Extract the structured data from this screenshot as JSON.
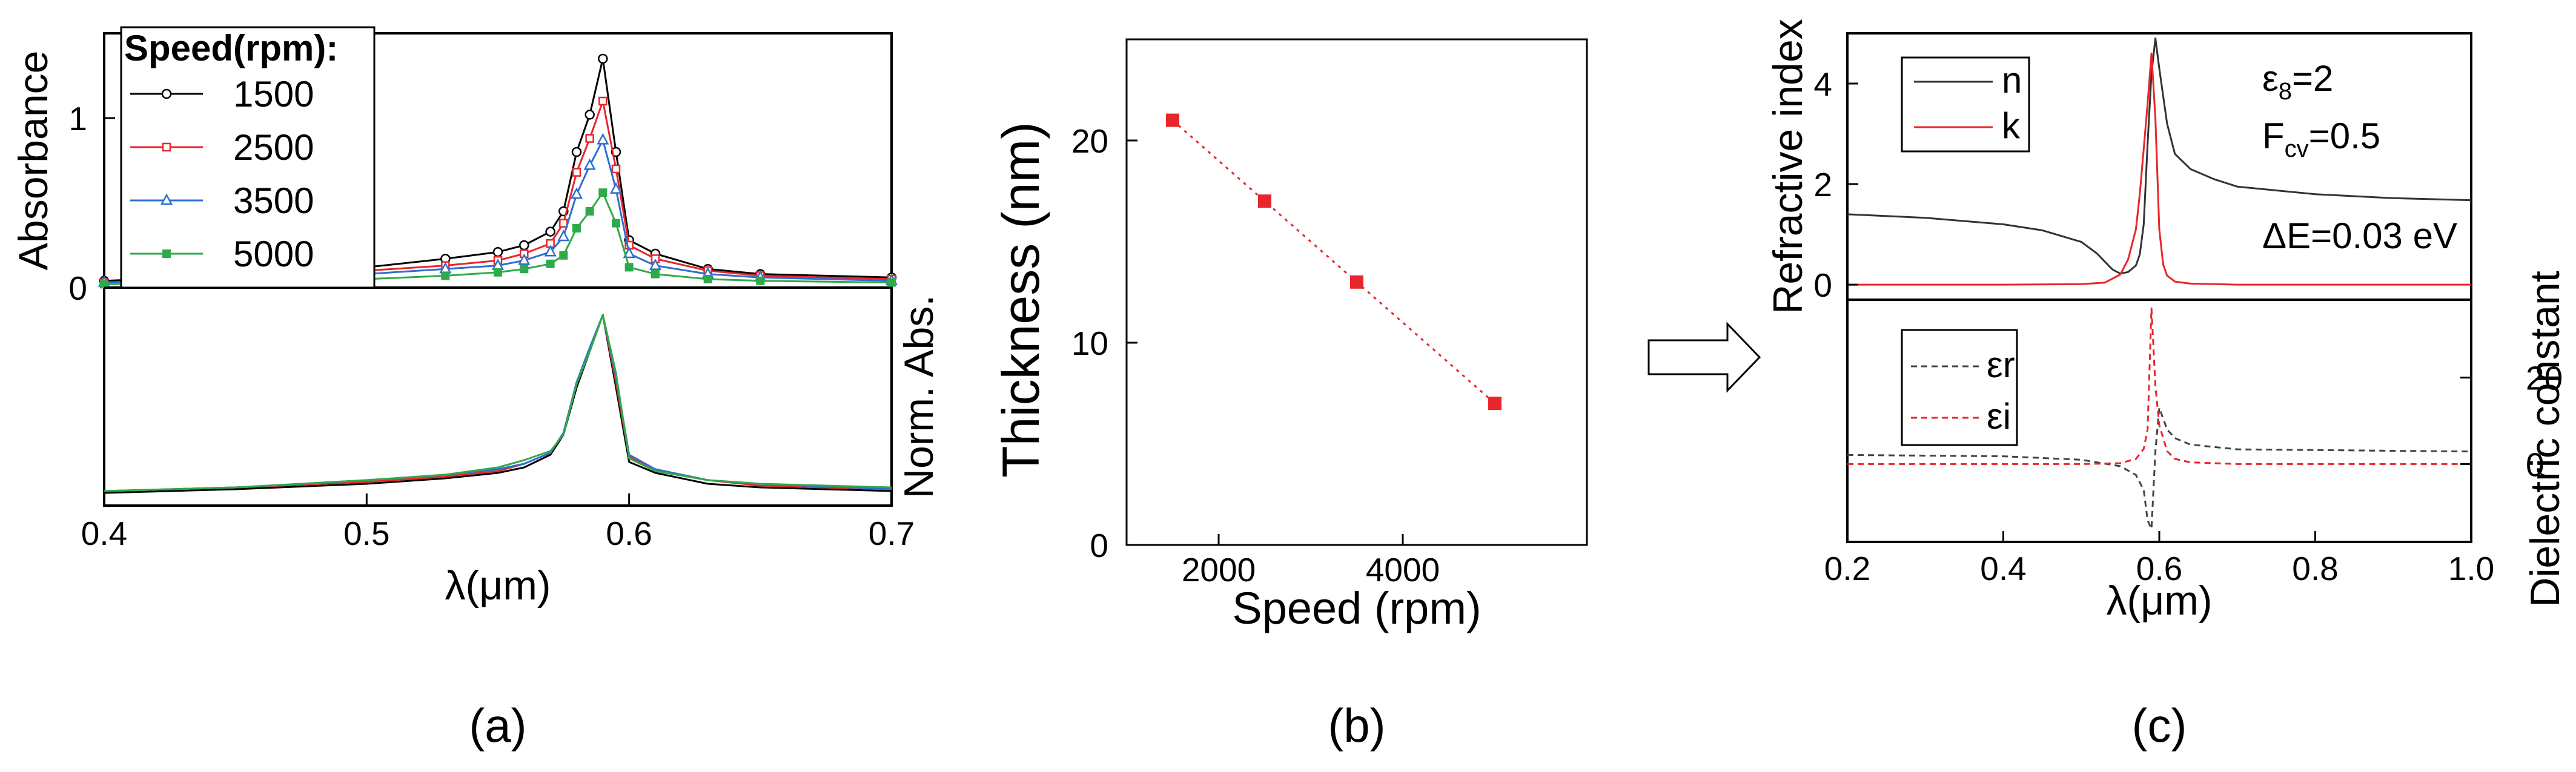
{
  "chart_data": [
    {
      "panel": "a",
      "caption": "(a)",
      "type": "line",
      "subplots": [
        {
          "name": "absorbance",
          "ylabel": "Absorbance",
          "ylim": [
            0,
            1.5
          ],
          "yticks": [
            "0",
            "1"
          ],
          "legend_title": "Speed(rpm):",
          "series": [
            {
              "name": "1500",
              "color": "#000000",
              "marker": "open-circle",
              "x": [
                0.4,
                0.45,
                0.5,
                0.53,
                0.55,
                0.56,
                0.57,
                0.575,
                0.58,
                0.585,
                0.59,
                0.595,
                0.6,
                0.61,
                0.63,
                0.65,
                0.7
              ],
              "y": [
                0.04,
                0.07,
                0.12,
                0.17,
                0.21,
                0.25,
                0.33,
                0.45,
                0.8,
                1.02,
                1.35,
                0.8,
                0.28,
                0.2,
                0.11,
                0.08,
                0.06
              ]
            },
            {
              "name": "2500",
              "color": "#e8262b",
              "marker": "square",
              "x": [
                0.4,
                0.45,
                0.5,
                0.53,
                0.55,
                0.56,
                0.57,
                0.575,
                0.58,
                0.585,
                0.59,
                0.595,
                0.6,
                0.61,
                0.63,
                0.65,
                0.7
              ],
              "y": [
                0.03,
                0.06,
                0.1,
                0.13,
                0.16,
                0.2,
                0.26,
                0.38,
                0.68,
                0.88,
                1.1,
                0.7,
                0.25,
                0.17,
                0.1,
                0.07,
                0.05
              ]
            },
            {
              "name": "3500",
              "color": "#2d6fd0",
              "marker": "triangle",
              "x": [
                0.4,
                0.45,
                0.5,
                0.53,
                0.55,
                0.56,
                0.57,
                0.575,
                0.58,
                0.585,
                0.59,
                0.595,
                0.6,
                0.61,
                0.63,
                0.65,
                0.7
              ],
              "y": [
                0.03,
                0.05,
                0.08,
                0.11,
                0.13,
                0.16,
                0.21,
                0.3,
                0.55,
                0.72,
                0.87,
                0.58,
                0.2,
                0.13,
                0.08,
                0.06,
                0.04
              ]
            },
            {
              "name": "5000",
              "color": "#2eaa4a",
              "marker": "filled-square",
              "x": [
                0.4,
                0.45,
                0.5,
                0.53,
                0.55,
                0.56,
                0.57,
                0.575,
                0.58,
                0.585,
                0.59,
                0.595,
                0.6,
                0.61,
                0.63,
                0.65,
                0.7
              ],
              "y": [
                0.02,
                0.03,
                0.05,
                0.07,
                0.09,
                0.11,
                0.14,
                0.19,
                0.35,
                0.45,
                0.56,
                0.38,
                0.12,
                0.08,
                0.05,
                0.04,
                0.03
              ]
            }
          ]
        },
        {
          "name": "normalized",
          "ylabel": "Norm. Abs.",
          "ylim": [
            0,
            1.15
          ],
          "series": [
            {
              "name": "1500",
              "color": "#000000",
              "x": [
                0.4,
                0.45,
                0.5,
                0.53,
                0.55,
                0.56,
                0.57,
                0.575,
                0.58,
                0.585,
                0.59,
                0.595,
                0.6,
                0.61,
                0.63,
                0.65,
                0.7
              ],
              "y": [
                0.02,
                0.04,
                0.07,
                0.1,
                0.13,
                0.16,
                0.23,
                0.34,
                0.6,
                0.8,
                1.0,
                0.6,
                0.19,
                0.13,
                0.07,
                0.05,
                0.03
              ]
            },
            {
              "name": "2500",
              "color": "#e8262b",
              "x": [
                0.4,
                0.45,
                0.5,
                0.53,
                0.55,
                0.56,
                0.57,
                0.575,
                0.58,
                0.585,
                0.59,
                0.595,
                0.6,
                0.61,
                0.63,
                0.65,
                0.7
              ],
              "y": [
                0.03,
                0.05,
                0.08,
                0.11,
                0.14,
                0.18,
                0.24,
                0.35,
                0.62,
                0.8,
                1.0,
                0.63,
                0.22,
                0.15,
                0.09,
                0.06,
                0.04
              ]
            },
            {
              "name": "3500",
              "color": "#2d6fd0",
              "x": [
                0.4,
                0.45,
                0.5,
                0.53,
                0.55,
                0.56,
                0.57,
                0.575,
                0.58,
                0.585,
                0.59,
                0.595,
                0.6,
                0.61,
                0.63,
                0.65,
                0.7
              ],
              "y": [
                0.03,
                0.05,
                0.09,
                0.12,
                0.15,
                0.18,
                0.24,
                0.35,
                0.63,
                0.82,
                1.0,
                0.66,
                0.23,
                0.15,
                0.09,
                0.07,
                0.04
              ]
            },
            {
              "name": "5000",
              "color": "#2eaa4a",
              "x": [
                0.4,
                0.45,
                0.5,
                0.53,
                0.55,
                0.56,
                0.57,
                0.575,
                0.58,
                0.585,
                0.59,
                0.595,
                0.6,
                0.61,
                0.63,
                0.65,
                0.7
              ],
              "y": [
                0.03,
                0.05,
                0.09,
                0.12,
                0.16,
                0.2,
                0.25,
                0.34,
                0.62,
                0.8,
                1.0,
                0.68,
                0.21,
                0.14,
                0.09,
                0.07,
                0.05
              ]
            }
          ]
        }
      ],
      "xlabel": "λ(μm)",
      "xlim": [
        0.4,
        0.7
      ],
      "xticks": [
        "0.4",
        "0.5",
        "0.6",
        "0.7"
      ]
    },
    {
      "panel": "b",
      "caption": "(b)",
      "type": "scatter",
      "xlabel": "Speed (rpm)",
      "ylabel": "Thickness (nm)",
      "xlim": [
        1000,
        6000
      ],
      "ylim": [
        0,
        25
      ],
      "xticks": [
        "2000",
        "4000"
      ],
      "yticks": [
        "0",
        "10",
        "20"
      ],
      "x": [
        1500,
        2500,
        3500,
        5000
      ],
      "y": [
        21,
        17,
        13,
        7
      ],
      "color": "#e8262b",
      "fit_line": "dotted"
    },
    {
      "panel": "c",
      "caption": "(c)",
      "type": "line",
      "xlabel": "λ(μm)",
      "xlim": [
        0.2,
        1.0
      ],
      "xticks": [
        "0.2",
        "0.4",
        "0.6",
        "0.8",
        "1.0"
      ],
      "subplots": [
        {
          "name": "refractive",
          "ylabel": "Refractive index",
          "ylim": [
            -0.3,
            5.0
          ],
          "yticks": [
            "0",
            "2",
            "4"
          ],
          "series": [
            {
              "name": "n",
              "color": "#333333",
              "x": [
                0.2,
                0.3,
                0.4,
                0.45,
                0.5,
                0.52,
                0.54,
                0.55,
                0.56,
                0.57,
                0.575,
                0.58,
                0.585,
                0.59,
                0.595,
                0.6,
                0.61,
                0.62,
                0.64,
                0.67,
                0.7,
                0.8,
                0.9,
                1.0
              ],
              "y": [
                1.4,
                1.33,
                1.2,
                1.08,
                0.85,
                0.62,
                0.3,
                0.22,
                0.25,
                0.38,
                0.6,
                1.2,
                2.8,
                4.2,
                4.9,
                4.3,
                3.2,
                2.6,
                2.3,
                2.1,
                1.95,
                1.8,
                1.72,
                1.68
              ]
            },
            {
              "name": "k",
              "color": "#e8262b",
              "x": [
                0.2,
                0.4,
                0.5,
                0.53,
                0.55,
                0.56,
                0.57,
                0.575,
                0.58,
                0.585,
                0.59,
                0.595,
                0.6,
                0.605,
                0.61,
                0.62,
                0.64,
                0.7,
                1.0
              ],
              "y": [
                0.0,
                0.0,
                0.01,
                0.04,
                0.2,
                0.5,
                1.1,
                1.8,
                2.7,
                3.6,
                4.6,
                3.3,
                1.1,
                0.4,
                0.18,
                0.06,
                0.02,
                0.0,
                0.0
              ]
            }
          ]
        },
        {
          "name": "dielectric",
          "ylabel": "Dielectric constant",
          "ylim": [
            -18,
            38
          ],
          "yticks": [
            "0",
            "20"
          ],
          "series": [
            {
              "name": "εr",
              "color": "#444444",
              "x": [
                0.2,
                0.4,
                0.5,
                0.55,
                0.57,
                0.58,
                0.585,
                0.59,
                0.595,
                0.6,
                0.61,
                0.62,
                0.64,
                0.7,
                1.0
              ],
              "y": [
                2.1,
                1.8,
                1.0,
                -0.5,
                -2.5,
                -6.0,
                -13.0,
                -15.0,
                3.0,
                13.0,
                8.0,
                6.0,
                4.5,
                3.4,
                2.9
              ]
            },
            {
              "name": "εi",
              "color": "#e8262b",
              "x": [
                0.2,
                0.4,
                0.5,
                0.55,
                0.57,
                0.58,
                0.585,
                0.59,
                0.595,
                0.6,
                0.61,
                0.62,
                0.64,
                0.7,
                1.0
              ],
              "y": [
                0.0,
                0.0,
                0.0,
                0.2,
                1.2,
                3.5,
                8.0,
                36.0,
                18.0,
                9.0,
                3.0,
                1.2,
                0.4,
                0.0,
                0.0
              ]
            }
          ]
        }
      ],
      "annotations": {
        "eps_inf_main": "ε",
        "eps_inf_sub": "8",
        "eps_inf_val": "=2",
        "fcv_main": "F",
        "fcv_sub": "cv",
        "fcv_val": "=0.5",
        "delta_e": "ΔE=0.03 eV"
      }
    }
  ]
}
